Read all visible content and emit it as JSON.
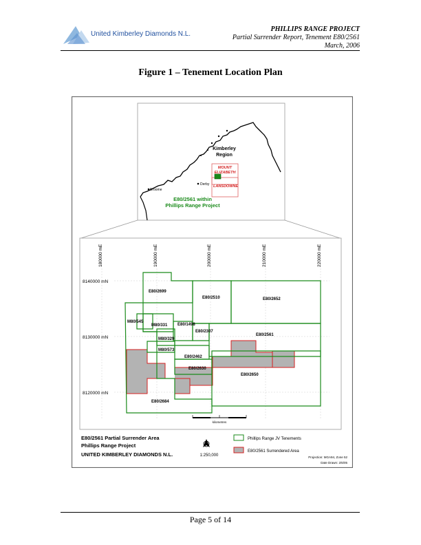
{
  "header": {
    "company": "United Kimberley Diamonds N.L.",
    "project": "PHILLIPS RANGE PROJECT",
    "report": "Partial Surrender Report, Tenement E80/2561",
    "date": "March, 2006"
  },
  "figure_title": "Figure 1 – Tenement Location Plan",
  "inset": {
    "region_line1": "Kimberley",
    "region_line2": "Region",
    "mount_line1": "MOUNT",
    "mount_line2": "ELIZABETH",
    "lansdowne": "LANSDOWNE",
    "derby": "Derby",
    "broome": "Broome",
    "caption_line1": "E80/2561 within",
    "caption_line2": "Phillips Range Project"
  },
  "grid": {
    "eastings": [
      "180000 mE",
      "190000 mE",
      "200000 mE",
      "210000 mE",
      "220000 mE"
    ],
    "northings": [
      "8140000 mN",
      "8130000 mN",
      "8120000 mN"
    ]
  },
  "tenements": [
    "E80/2699",
    "E80/2510",
    "E80/2652",
    "M80/545",
    "M80/331",
    "E80/1498",
    "E80/2307",
    "E80/2561",
    "M80/329",
    "M80/573",
    "E80/2462",
    "E80/2630",
    "E80/2650",
    "E80/2684"
  ],
  "scale": {
    "label": "kilometres",
    "ratio": "1:250,000"
  },
  "legend_block": {
    "title": "E80/2561 Partial Surrender Area",
    "project": "Phillips Range Project",
    "company": "UNITED KIMBERLEY DIAMONDS N.L.",
    "jv_tenements": "Phillips Range JV Tenements",
    "surrendered": "E80/2561 Surrendered Area",
    "projection": "Projection:  MGA94, Zone 52",
    "drawn": "Date Drawn:  2/6/05"
  },
  "colors": {
    "tenement": "#1a8a1a",
    "surrendered_fill": "#b3b3b3",
    "surrendered_line": "#d42020"
  },
  "footer": "Page 5 of 14"
}
